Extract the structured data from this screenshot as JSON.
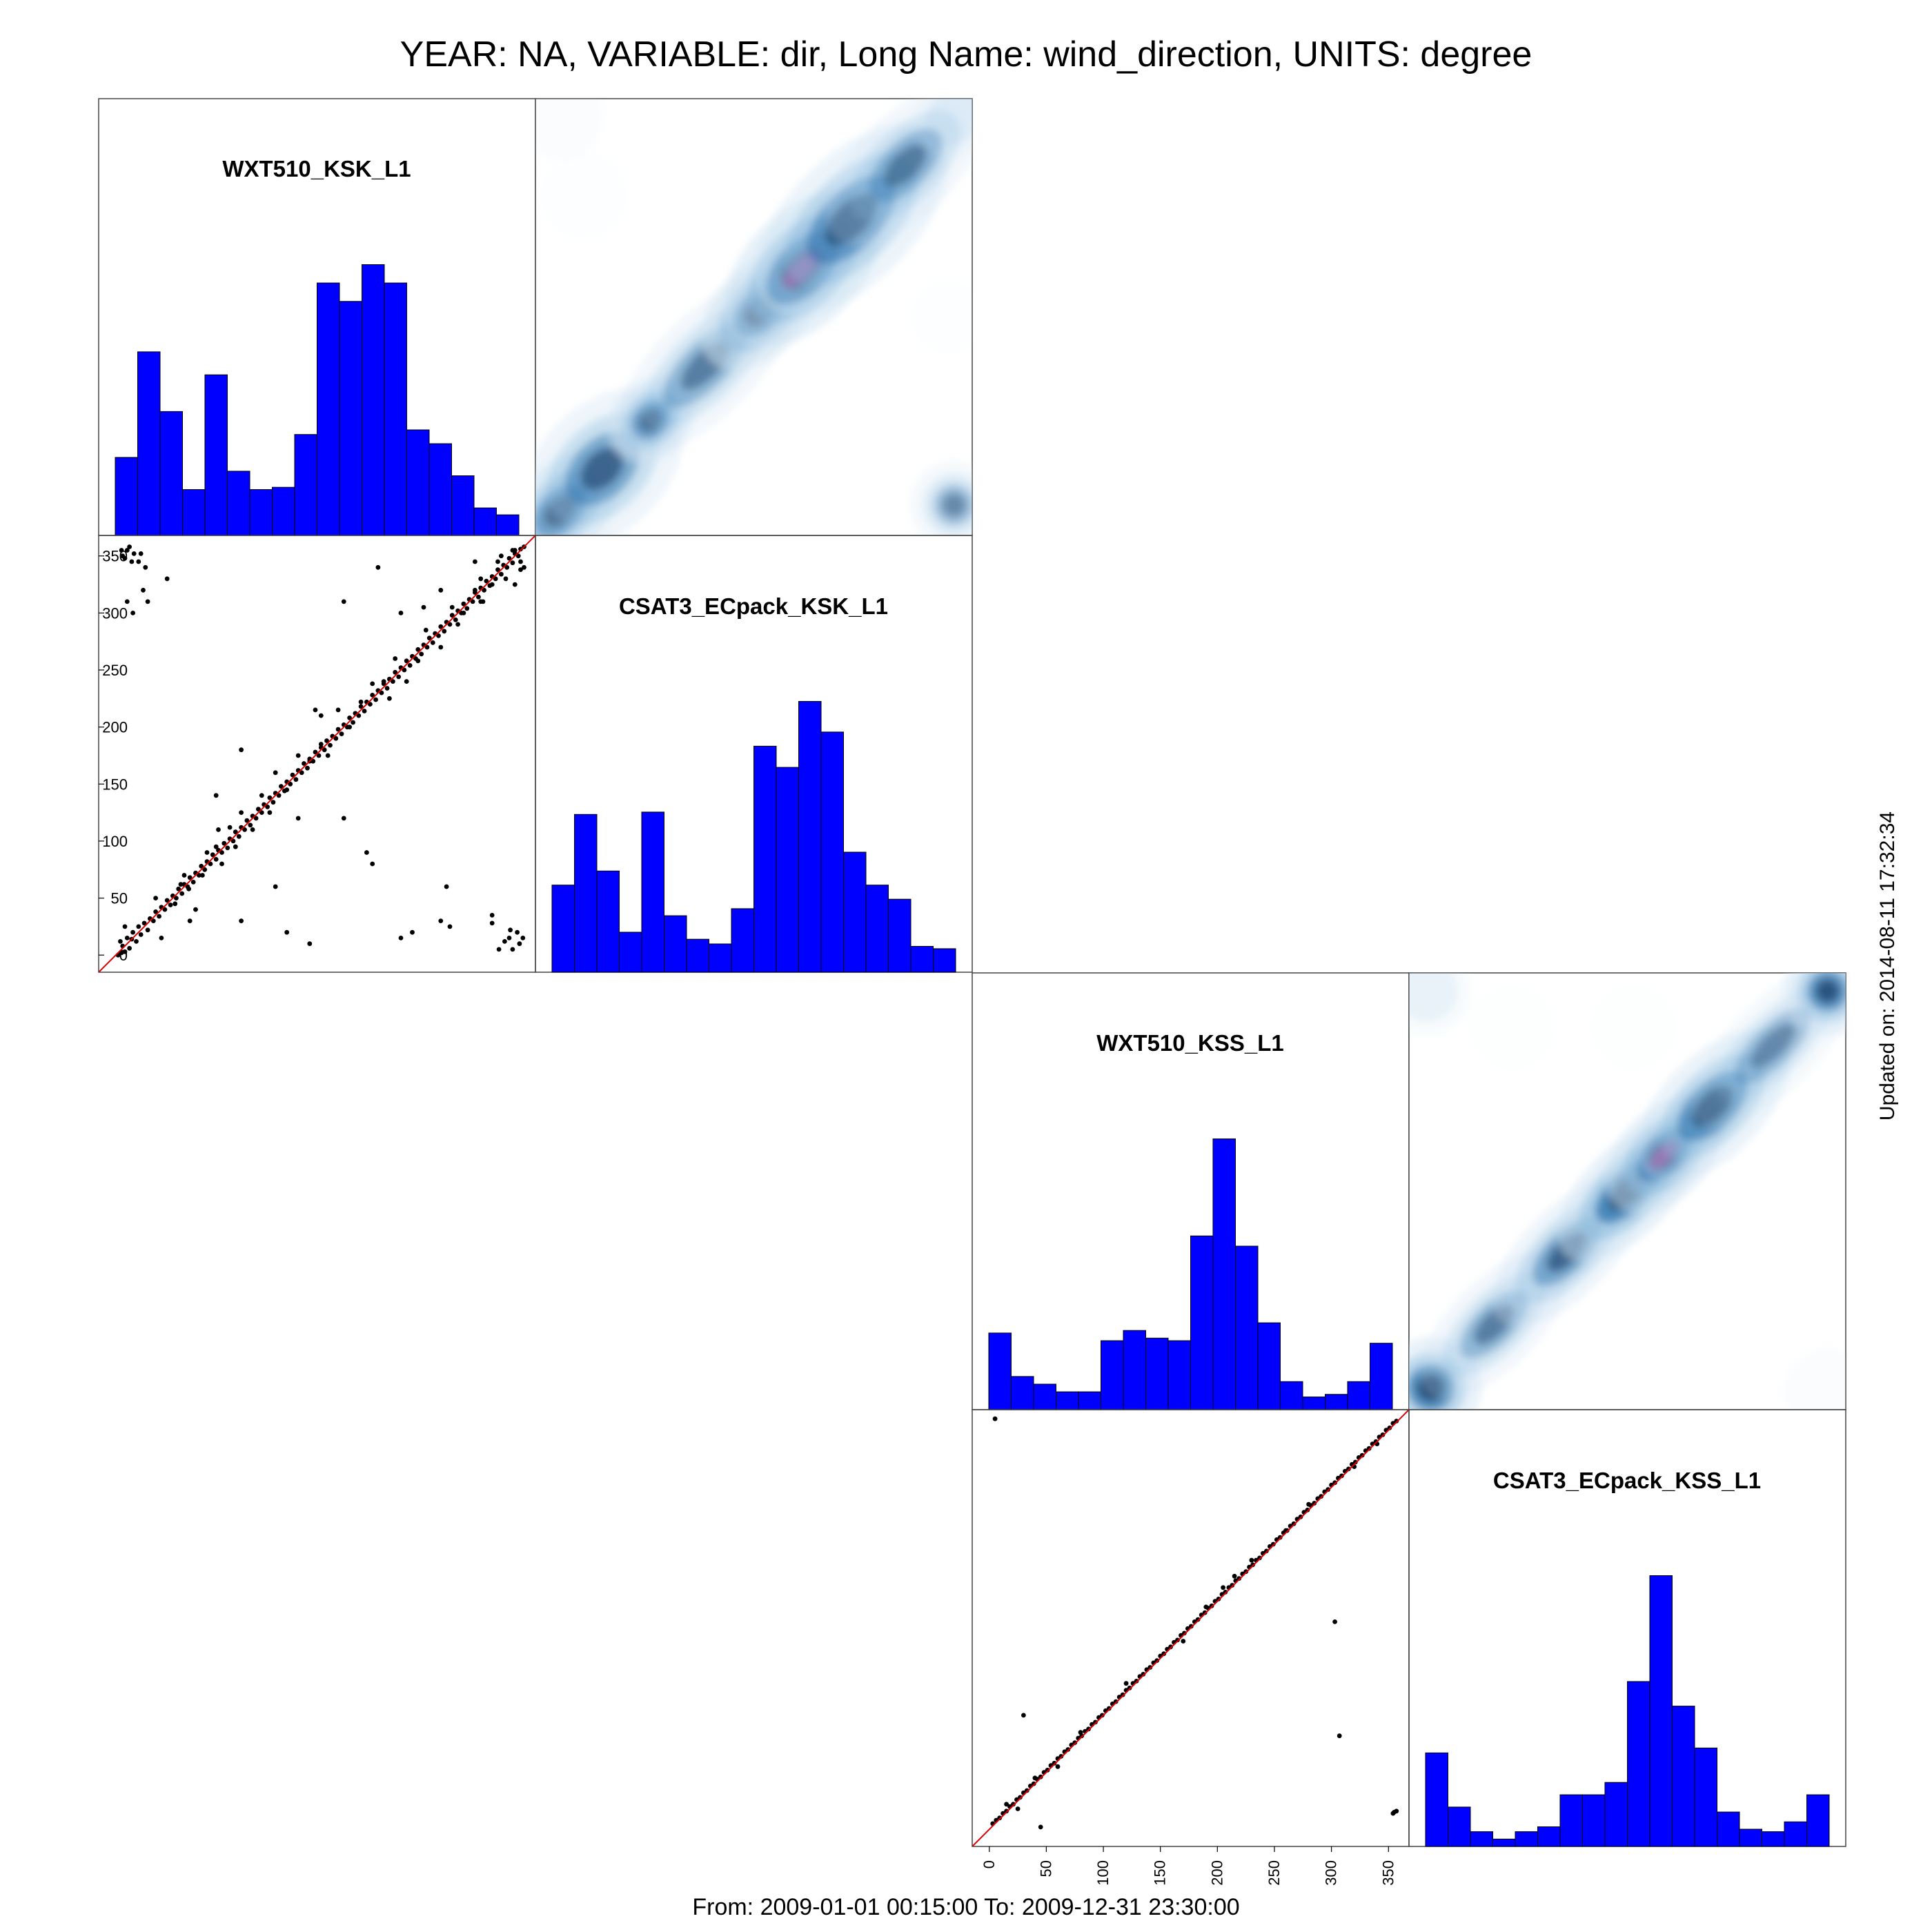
{
  "title": "YEAR: NA, VARIABLE: dir, Long Name: wind_direction, UNITS: degree",
  "footer": "From: 2009-01-01 00:15:00 To: 2009-12-31 23:30:00",
  "updated": "Updated on: 2014-08-11 17:32:34",
  "colors": {
    "bar_fill": "#0000ff",
    "point": "#000000",
    "identity_line": "#e00000",
    "density_low": "#ffffff",
    "density_mid": "#1f6aa8",
    "density_high": "#0b2f5a",
    "density_peak": "#7b2d8e"
  },
  "chart_data": [
    {
      "type": "histogram",
      "panel": "top-left-diagonal",
      "label": "WXT510_KSK_L1",
      "values": [
        17,
        40,
        27,
        10,
        35,
        14,
        10,
        10.5,
        22,
        55,
        51,
        59,
        55,
        23,
        20,
        13,
        6,
        4.5
      ]
    },
    {
      "type": "heatmap",
      "panel": "top-left-upper",
      "description_axes": [
        "WXT510_KSK_L1",
        "CSAT3_ECpack_KSK_L1"
      ],
      "xlim": [
        0,
        360
      ],
      "ylim": [
        0,
        360
      ],
      "kernels": [
        {
          "x": 20,
          "y": 20,
          "sx": 22,
          "sy": 14,
          "w": 0.75
        },
        {
          "x": 55,
          "y": 55,
          "sx": 30,
          "sy": 20,
          "w": 0.45
        },
        {
          "x": 95,
          "y": 95,
          "sx": 15,
          "sy": 12,
          "w": 0.65
        },
        {
          "x": 140,
          "y": 140,
          "sx": 38,
          "sy": 16,
          "w": 0.35
        },
        {
          "x": 185,
          "y": 185,
          "sx": 22,
          "sy": 14,
          "w": 0.75
        },
        {
          "x": 220,
          "y": 220,
          "sx": 30,
          "sy": 18,
          "w": 1.0
        },
        {
          "x": 260,
          "y": 260,
          "sx": 38,
          "sy": 20,
          "w": 0.5
        },
        {
          "x": 305,
          "y": 305,
          "sx": 32,
          "sy": 16,
          "w": 0.35
        },
        {
          "x": 345,
          "y": 345,
          "sx": 14,
          "sy": 12,
          "w": 0.2
        },
        {
          "x": 345,
          "y": 25,
          "sx": 14,
          "sy": 14,
          "w": 0.3
        },
        {
          "x": 20,
          "y": 345,
          "sx": 14,
          "sy": 14,
          "w": 0.12
        },
        {
          "x": 340,
          "y": 180,
          "sx": 12,
          "sy": 12,
          "w": 0.05
        },
        {
          "x": 40,
          "y": 280,
          "sx": 14,
          "sy": 14,
          "w": 0.04
        }
      ]
    },
    {
      "type": "scatter",
      "panel": "top-left-lower",
      "xlim": [
        -15,
        368
      ],
      "ylim": [
        -15,
        368
      ],
      "yticks": [
        0,
        50,
        100,
        150,
        200,
        250,
        300,
        350
      ],
      "x": [
        2,
        4,
        5,
        6,
        8,
        10,
        12,
        14,
        15,
        18,
        20,
        22,
        25,
        28,
        30,
        33,
        35,
        38,
        40,
        43,
        45,
        48,
        50,
        53,
        55,
        58,
        60,
        63,
        65,
        68,
        70,
        73,
        75,
        78,
        80,
        83,
        85,
        88,
        90,
        93,
        95,
        98,
        100,
        103,
        105,
        108,
        110,
        113,
        115,
        118,
        120,
        123,
        125,
        128,
        130,
        133,
        135,
        138,
        140,
        143,
        145,
        148,
        150,
        153,
        155,
        158,
        160,
        163,
        165,
        168,
        170,
        173,
        175,
        178,
        180,
        183,
        185,
        188,
        190,
        193,
        195,
        198,
        200,
        203,
        205,
        208,
        210,
        213,
        215,
        218,
        220,
        223,
        225,
        228,
        230,
        233,
        235,
        238,
        240,
        243,
        245,
        248,
        250,
        253,
        255,
        258,
        260,
        263,
        265,
        268,
        270,
        273,
        275,
        278,
        280,
        283,
        285,
        288,
        290,
        293,
        295,
        298,
        300,
        303,
        305,
        308,
        310,
        313,
        315,
        318,
        320,
        323,
        325,
        328,
        330,
        333,
        335,
        338,
        340,
        343,
        345,
        348,
        350,
        353,
        355,
        358,
        6,
        10,
        14,
        22,
        26,
        45,
        70,
        110,
        150,
        170,
        200,
        230,
        260,
        290,
        330,
        345,
        5,
        8,
        12,
        16,
        20,
        24,
        28,
        10,
        15,
        52,
        57,
        64,
        76,
        80,
        88,
        93,
        100,
        105,
        110,
        120,
        128,
        135,
        140,
        150,
        160,
        170,
        180,
        186,
        195,
        205,
        215,
        225,
        235,
        240,
        245,
        255,
        265,
        272,
        285,
        295,
        305,
        315,
        322,
        330,
        338,
        342,
        350,
        355,
        8,
        180,
        175,
        88,
        40,
        140,
        160,
        110,
        65,
        250,
        270,
        285,
        300,
        320,
        335,
        348,
        354,
        357,
        352,
        346,
        341,
        336,
        330,
        285,
        293,
        250,
        225,
        220,
        200,
        90,
        60,
        35,
        320,
        315,
        355,
        350,
        348,
        358
      ],
      "y": [
        0,
        12,
        2,
        8,
        3,
        15,
        6,
        14,
        20,
        12,
        25,
        18,
        28,
        22,
        32,
        30,
        38,
        34,
        42,
        40,
        48,
        44,
        52,
        50,
        58,
        54,
        62,
        60,
        68,
        64,
        72,
        70,
        78,
        75,
        82,
        80,
        88,
        84,
        92,
        90,
        98,
        94,
        102,
        100,
        108,
        104,
        112,
        110,
        118,
        114,
        122,
        120,
        128,
        125,
        132,
        130,
        138,
        134,
        142,
        140,
        148,
        144,
        152,
        150,
        158,
        154,
        162,
        160,
        168,
        164,
        172,
        170,
        178,
        175,
        182,
        180,
        188,
        184,
        192,
        190,
        198,
        194,
        202,
        200,
        208,
        204,
        212,
        210,
        218,
        214,
        222,
        220,
        228,
        224,
        232,
        230,
        238,
        234,
        242,
        240,
        248,
        244,
        252,
        250,
        258,
        254,
        262,
        260,
        268,
        264,
        272,
        270,
        278,
        274,
        282,
        280,
        288,
        284,
        292,
        290,
        298,
        294,
        302,
        300,
        308,
        304,
        312,
        310,
        318,
        314,
        322,
        320,
        328,
        324,
        332,
        330,
        338,
        334,
        342,
        340,
        348,
        344,
        352,
        350,
        356,
        358,
        350,
        355,
        345,
        352,
        340,
        330,
        40,
        30,
        20,
        10,
        310,
        340,
        20,
        60,
        28,
        15,
        355,
        348,
        358,
        352,
        345,
        320,
        310,
        310,
        300,
        45,
        62,
        58,
        70,
        90,
        95,
        80,
        112,
        95,
        125,
        110,
        140,
        125,
        160,
        145,
        175,
        170,
        210,
        175,
        215,
        200,
        222,
        238,
        240,
        225,
        260,
        240,
        258,
        285,
        270,
        305,
        300,
        320,
        310,
        325,
        350,
        330,
        355,
        345,
        25,
        185,
        215,
        140,
        15,
        60,
        120,
        180,
        30,
        300,
        305,
        320,
        290,
        310,
        345,
        5,
        10,
        15,
        20,
        22,
        12,
        5,
        35,
        30,
        25,
        15,
        80,
        90,
        120,
        110,
        70,
        50,
        330,
        345,
        338,
        325,
        355,
        340
      ]
    },
    {
      "type": "histogram",
      "panel": "top-right-diagonal",
      "label": "CSAT3_ECpack_KSK_L1",
      "values": [
        37,
        67,
        43,
        17,
        68,
        24,
        14,
        12,
        27,
        96,
        87,
        115,
        102,
        51,
        37,
        31,
        11,
        10
      ]
    },
    {
      "type": "histogram",
      "panel": "bottom-left-diagonal",
      "label": "WXT510_KSS_L1",
      "values": [
        30,
        13,
        10,
        7,
        7,
        27,
        31,
        28,
        27,
        68,
        106,
        64,
        34,
        11,
        5,
        6,
        11,
        26
      ]
    },
    {
      "type": "heatmap",
      "panel": "bottom-left-upper",
      "description_axes": [
        "WXT510_KSS_L1",
        "CSAT3_ECpack_KSS_L1"
      ],
      "xlim": [
        0,
        360
      ],
      "ylim": [
        0,
        360
      ],
      "kernels": [
        {
          "x": 18,
          "y": 18,
          "sx": 16,
          "sy": 16,
          "w": 0.6
        },
        {
          "x": 70,
          "y": 70,
          "sx": 30,
          "sy": 14,
          "w": 0.35
        },
        {
          "x": 130,
          "y": 130,
          "sx": 30,
          "sy": 14,
          "w": 0.45
        },
        {
          "x": 180,
          "y": 180,
          "sx": 28,
          "sy": 14,
          "w": 0.65
        },
        {
          "x": 210,
          "y": 210,
          "sx": 22,
          "sy": 14,
          "w": 1.0
        },
        {
          "x": 250,
          "y": 250,
          "sx": 30,
          "sy": 16,
          "w": 0.55
        },
        {
          "x": 300,
          "y": 300,
          "sx": 34,
          "sy": 14,
          "w": 0.3
        },
        {
          "x": 345,
          "y": 345,
          "sx": 14,
          "sy": 14,
          "w": 0.55
        },
        {
          "x": 15,
          "y": 345,
          "sx": 14,
          "sy": 14,
          "w": 0.18
        },
        {
          "x": 345,
          "y": 15,
          "sx": 14,
          "sy": 14,
          "w": 0.12
        },
        {
          "x": 85,
          "y": 315,
          "sx": 14,
          "sy": 14,
          "w": 0.07
        },
        {
          "x": 185,
          "y": 315,
          "sx": 14,
          "sy": 14,
          "w": 0.07
        }
      ]
    },
    {
      "type": "scatter",
      "panel": "bottom-left-lower",
      "xlim": [
        -15,
        368
      ],
      "ylim": [
        -15,
        368
      ],
      "xticks": [
        0,
        50,
        100,
        150,
        200,
        250,
        300,
        350
      ],
      "x": [
        3,
        6,
        9,
        12,
        15,
        18,
        21,
        24,
        27,
        30,
        33,
        36,
        39,
        42,
        45,
        48,
        51,
        54,
        57,
        60,
        63,
        66,
        69,
        72,
        75,
        78,
        81,
        84,
        87,
        90,
        93,
        96,
        99,
        102,
        105,
        108,
        111,
        114,
        117,
        120,
        123,
        126,
        129,
        132,
        135,
        138,
        141,
        144,
        147,
        150,
        153,
        156,
        159,
        162,
        165,
        168,
        171,
        174,
        177,
        180,
        183,
        186,
        189,
        192,
        195,
        198,
        201,
        204,
        207,
        210,
        213,
        216,
        219,
        222,
        225,
        228,
        231,
        234,
        237,
        240,
        243,
        246,
        249,
        252,
        255,
        258,
        261,
        264,
        267,
        270,
        273,
        276,
        279,
        282,
        285,
        288,
        291,
        294,
        297,
        300,
        303,
        306,
        309,
        312,
        315,
        318,
        321,
        324,
        327,
        330,
        333,
        336,
        339,
        342,
        345,
        348,
        351,
        354,
        357,
        30,
        45,
        303,
        307,
        355,
        357,
        354,
        5,
        15,
        25,
        40,
        60,
        80,
        120,
        170,
        190,
        205,
        215,
        230,
        260,
        280,
        320,
        340
      ],
      "y": [
        5,
        8,
        10,
        14,
        16,
        20,
        22,
        26,
        28,
        32,
        34,
        38,
        40,
        44,
        46,
        50,
        52,
        56,
        58,
        62,
        64,
        68,
        70,
        74,
        76,
        80,
        82,
        86,
        88,
        92,
        94,
        98,
        100,
        104,
        106,
        110,
        112,
        116,
        118,
        122,
        124,
        128,
        130,
        134,
        136,
        140,
        142,
        146,
        148,
        152,
        154,
        158,
        160,
        164,
        166,
        170,
        172,
        176,
        178,
        182,
        184,
        188,
        190,
        194,
        196,
        200,
        202,
        206,
        208,
        212,
        214,
        218,
        220,
        224,
        226,
        230,
        232,
        236,
        238,
        242,
        244,
        248,
        250,
        254,
        256,
        260,
        262,
        266,
        268,
        272,
        274,
        278,
        280,
        284,
        286,
        290,
        292,
        296,
        298,
        302,
        304,
        308,
        310,
        314,
        316,
        320,
        322,
        326,
        328,
        332,
        334,
        338,
        340,
        344,
        346,
        350,
        352,
        356,
        358,
        100,
        2,
        182,
        82,
        15,
        16,
        14,
        360,
        22,
        18,
        45,
        55,
        85,
        128,
        165,
        195,
        212,
        222,
        236,
        262,
        285,
        318,
        338
      ]
    },
    {
      "type": "histogram",
      "panel": "bottom-right-diagonal",
      "label": "CSAT3_ECpack_KSS_L1",
      "values": [
        38,
        16,
        6,
        3,
        6,
        8,
        21,
        21,
        26,
        67,
        110,
        57,
        40,
        14,
        7,
        6,
        10,
        21
      ]
    }
  ]
}
